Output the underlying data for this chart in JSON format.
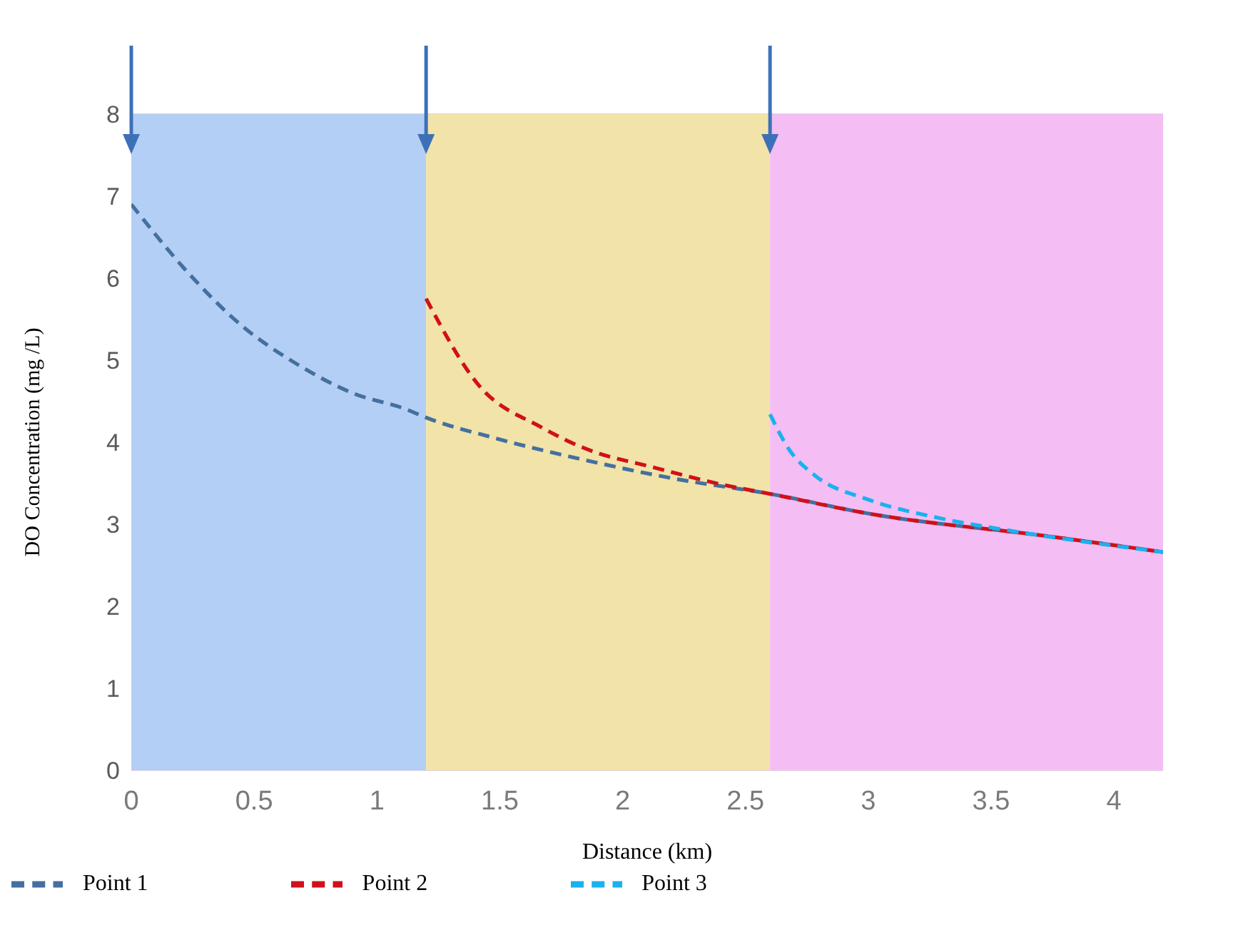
{
  "chart_data": {
    "type": "line",
    "xlabel": "Distance (km)",
    "ylabel": "DO Concentration (mg /L)",
    "xlim": [
      0,
      4.2
    ],
    "xticks": [
      0,
      0.5,
      1,
      1.5,
      2,
      2.5,
      3,
      3.5,
      4
    ],
    "ylim": [
      0,
      8
    ],
    "yticks": [
      0,
      1,
      2,
      3,
      4,
      5,
      6,
      7,
      8
    ],
    "grid": "y",
    "legend": "bottom",
    "line_style": "dashed",
    "series": [
      {
        "name": "Point 1",
        "color": "#44709f",
        "x": [
          0,
          0.23,
          0.45,
          0.67,
          0.9,
          1.12,
          1.2,
          1.48,
          1.85,
          2.22,
          2.6,
          3.0,
          3.74,
          4.2
        ],
        "values": [
          6.9,
          6.07,
          5.42,
          4.96,
          4.6,
          4.4,
          4.3,
          4.05,
          3.78,
          3.55,
          3.37,
          3.13,
          2.85,
          2.66
        ]
      },
      {
        "name": "Point 2",
        "color": "#d0101a",
        "x": [
          1.2,
          1.41,
          1.67,
          1.85,
          2.13,
          2.41,
          2.6,
          3.0,
          3.74,
          4.2
        ],
        "values": [
          5.75,
          4.71,
          4.18,
          3.92,
          3.69,
          3.48,
          3.37,
          3.13,
          2.85,
          2.66
        ]
      },
      {
        "name": "Point 3",
        "color": "#1ab2ee",
        "x": [
          2.6,
          2.68,
          2.78,
          3.0,
          3.28,
          3.56,
          4.2
        ],
        "values": [
          4.34,
          3.9,
          3.6,
          3.3,
          3.08,
          2.93,
          2.66
        ]
      }
    ],
    "bands": [
      {
        "axis": "x",
        "from": 0,
        "to": 1.2,
        "color": "#b4cff5"
      },
      {
        "axis": "x",
        "from": 1.2,
        "to": 2.6,
        "color": "#f2e3a8"
      },
      {
        "axis": "x",
        "from": 2.6,
        "to": 4.2,
        "color": "#f4bdf4"
      }
    ]
  }
}
